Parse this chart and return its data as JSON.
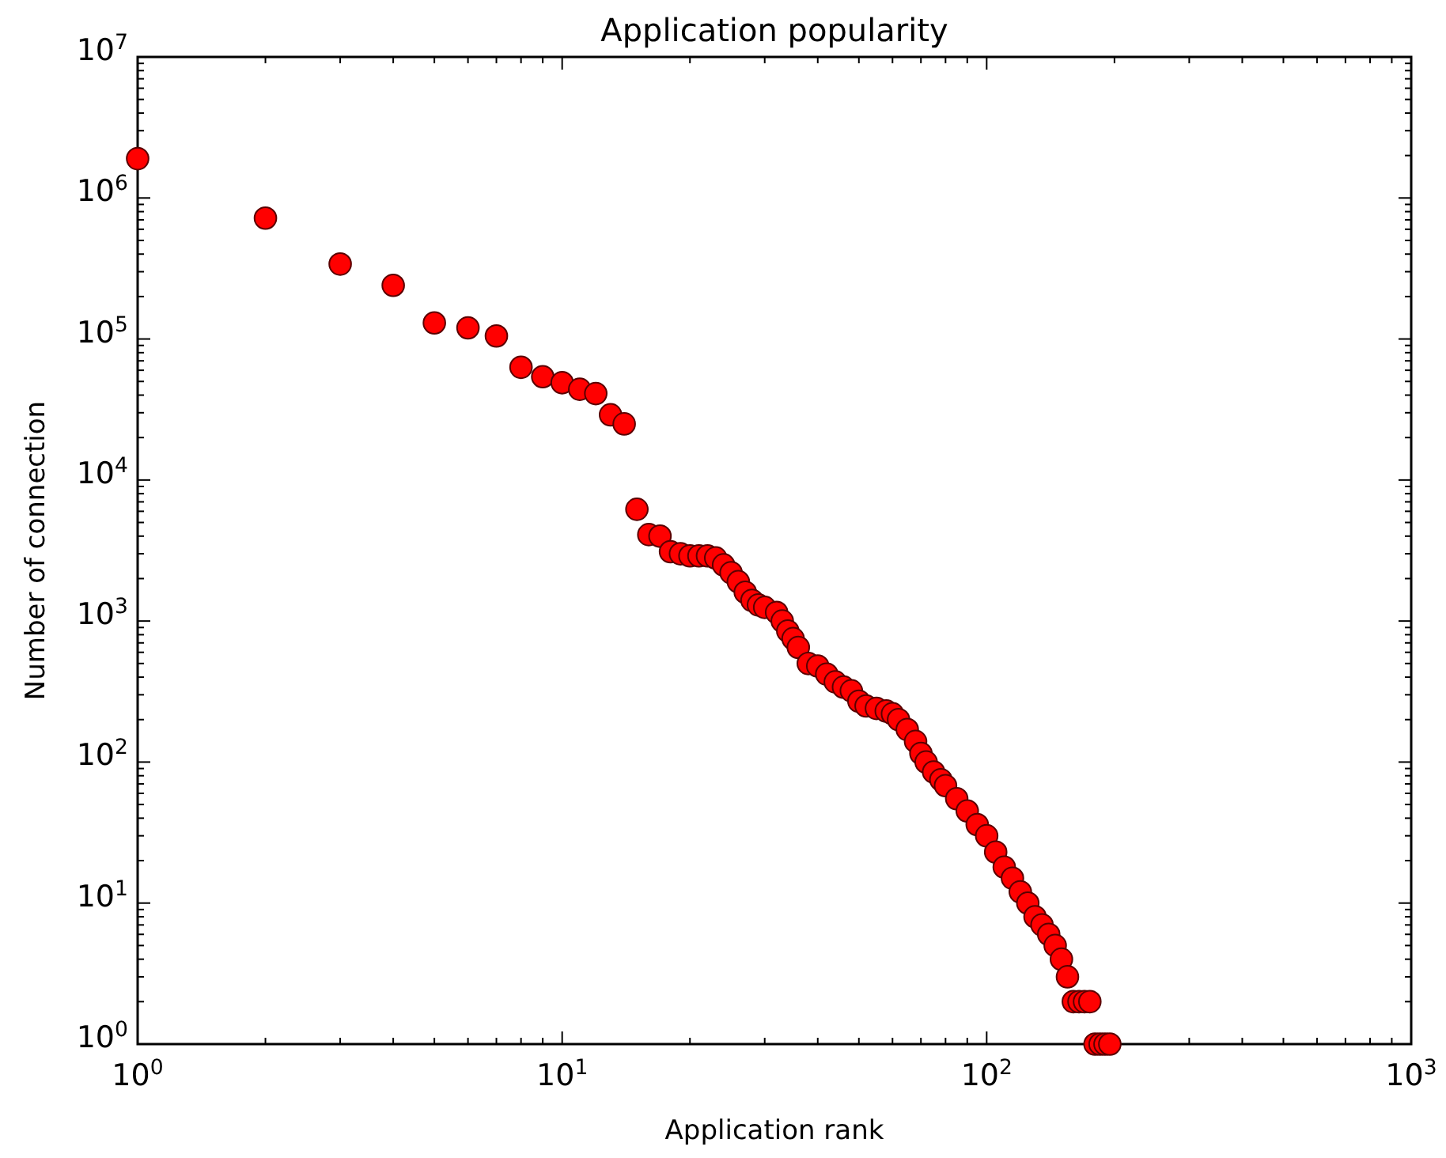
{
  "chart_data": {
    "type": "scatter",
    "title": "Application popularity",
    "xlabel": "Application rank",
    "ylabel": "Number of connection",
    "log": "xy",
    "grid": false,
    "marker": "circle",
    "xlim": [
      1,
      1000
    ],
    "xticks": [
      {
        "value": 1,
        "label": "10$^{0}$"
      },
      {
        "value": 10,
        "label": "10$^{1}$"
      },
      {
        "value": 100,
        "label": "10$^{2}$"
      },
      {
        "value": 1000,
        "label": "10$^{3}$"
      }
    ],
    "ylim": [
      1,
      10000000
    ],
    "yticks": [
      {
        "value": 1,
        "label": "10$^{0}$"
      },
      {
        "value": 10,
        "label": "10$^{1}$"
      },
      {
        "value": 100,
        "label": "10$^{2}$"
      },
      {
        "value": 1000,
        "label": "10$^{3}$"
      },
      {
        "value": 10000,
        "label": "10$^{4}$"
      },
      {
        "value": 100000,
        "label": "10$^{5}$"
      },
      {
        "value": 1000000,
        "label": "10$^{6}$"
      },
      {
        "value": 10000000,
        "label": "10$^{7}$"
      }
    ],
    "series": [
      {
        "color": "#ff0000",
        "x": [
          1,
          2,
          3,
          4,
          5,
          6,
          7,
          8,
          9,
          10,
          11,
          12,
          13,
          14,
          15,
          16,
          17,
          18,
          19,
          20,
          21,
          22,
          23,
          24,
          25,
          26,
          27,
          28,
          29,
          30,
          32,
          33,
          34,
          35,
          36,
          38,
          40,
          42,
          44,
          46,
          48,
          50,
          52,
          55,
          58,
          60,
          62,
          65,
          68,
          70,
          72,
          75,
          78,
          80,
          85,
          90,
          95,
          100,
          105,
          110,
          115,
          120,
          125,
          130,
          135,
          140,
          145,
          150,
          155,
          160,
          165,
          170,
          175,
          180,
          185,
          190,
          195
        ],
        "values": [
          1900000,
          720000,
          340000,
          240000,
          130000,
          120000,
          105000,
          63000,
          54000,
          49000,
          44000,
          41000,
          29000,
          25000,
          6200,
          4100,
          4000,
          3100,
          3000,
          2900,
          2900,
          2900,
          2800,
          2500,
          2200,
          1900,
          1600,
          1400,
          1300,
          1250,
          1150,
          1000,
          850,
          750,
          650,
          500,
          480,
          420,
          370,
          340,
          320,
          270,
          250,
          240,
          230,
          220,
          200,
          170,
          140,
          115,
          100,
          85,
          75,
          68,
          55,
          45,
          36,
          30,
          23,
          18,
          15,
          12,
          10,
          8,
          7,
          6,
          5,
          4,
          3,
          2,
          2,
          2,
          2,
          1,
          1,
          1,
          1
        ]
      }
    ]
  }
}
